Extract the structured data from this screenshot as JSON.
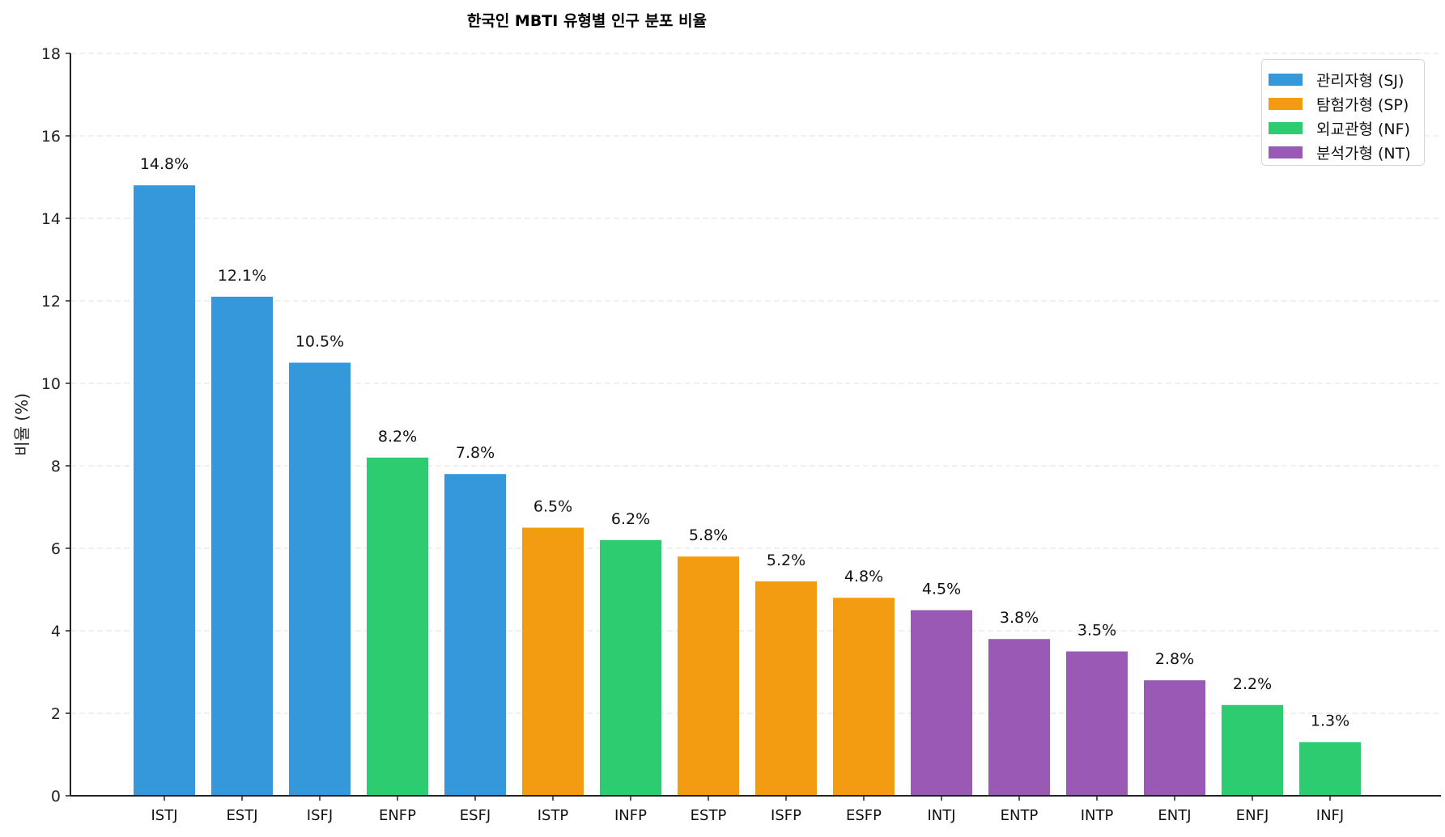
{
  "chart_data": {
    "type": "bar",
    "title": "한국인 MBTI 유형별 인구 분포 비율",
    "xlabel": "",
    "ylabel": "비율 (%)",
    "ylim": [
      0,
      18
    ],
    "yticks": [
      0,
      2,
      4,
      6,
      8,
      10,
      12,
      14,
      16,
      18
    ],
    "grid": {
      "axis": "y",
      "style": "dashed",
      "color": "#e6e6e6"
    },
    "legend_position": "upper right",
    "categories": [
      "ISTJ",
      "ESTJ",
      "ISFJ",
      "ENFP",
      "ESFJ",
      "ISTP",
      "INFP",
      "ESTP",
      "ISFP",
      "ESFP",
      "INTJ",
      "ENTP",
      "INTP",
      "ENTJ",
      "ENFJ",
      "INFJ"
    ],
    "values": [
      14.8,
      12.1,
      10.5,
      8.2,
      7.8,
      6.5,
      6.2,
      5.8,
      5.2,
      4.8,
      4.5,
      3.8,
      3.5,
      2.8,
      2.2,
      1.3
    ],
    "value_labels": [
      "14.8%",
      "12.1%",
      "10.5%",
      "8.2%",
      "7.8%",
      "6.5%",
      "6.2%",
      "5.8%",
      "5.2%",
      "4.8%",
      "4.5%",
      "3.8%",
      "3.5%",
      "2.8%",
      "2.2%",
      "1.3%"
    ],
    "groups": [
      "SJ",
      "SJ",
      "SJ",
      "NF",
      "SJ",
      "SP",
      "NF",
      "SP",
      "SP",
      "SP",
      "NT",
      "NT",
      "NT",
      "NT",
      "NF",
      "NF"
    ],
    "legend": [
      {
        "key": "SJ",
        "label": "관리자형 (SJ)",
        "color": "#3498db"
      },
      {
        "key": "SP",
        "label": "탐험가형 (SP)",
        "color": "#f39c12"
      },
      {
        "key": "NF",
        "label": "외교관형 (NF)",
        "color": "#2ecc71"
      },
      {
        "key": "NT",
        "label": "분석가형 (NT)",
        "color": "#9b59b6"
      }
    ]
  }
}
